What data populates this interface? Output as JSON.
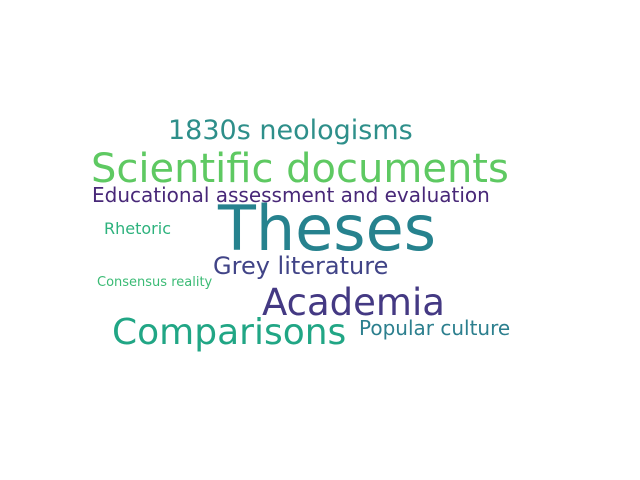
{
  "word_cloud": {
    "words": [
      {
        "text": "Theses",
        "color": "#26828e"
      },
      {
        "text": "Scientific documents",
        "color": "#5ec962"
      },
      {
        "text": "Academia",
        "color": "#443983"
      },
      {
        "text": "Comparisons",
        "color": "#21a685"
      },
      {
        "text": "1830s neologisms",
        "color": "#2e8f8a"
      },
      {
        "text": "Grey literature",
        "color": "#414487"
      },
      {
        "text": "Educational assessment and evaluation",
        "color": "#482878"
      },
      {
        "text": "Popular culture",
        "color": "#2c7f8e"
      },
      {
        "text": "Rhetoric",
        "color": "#2db27d"
      },
      {
        "text": "Consensus reality",
        "color": "#3bbb75"
      }
    ]
  }
}
